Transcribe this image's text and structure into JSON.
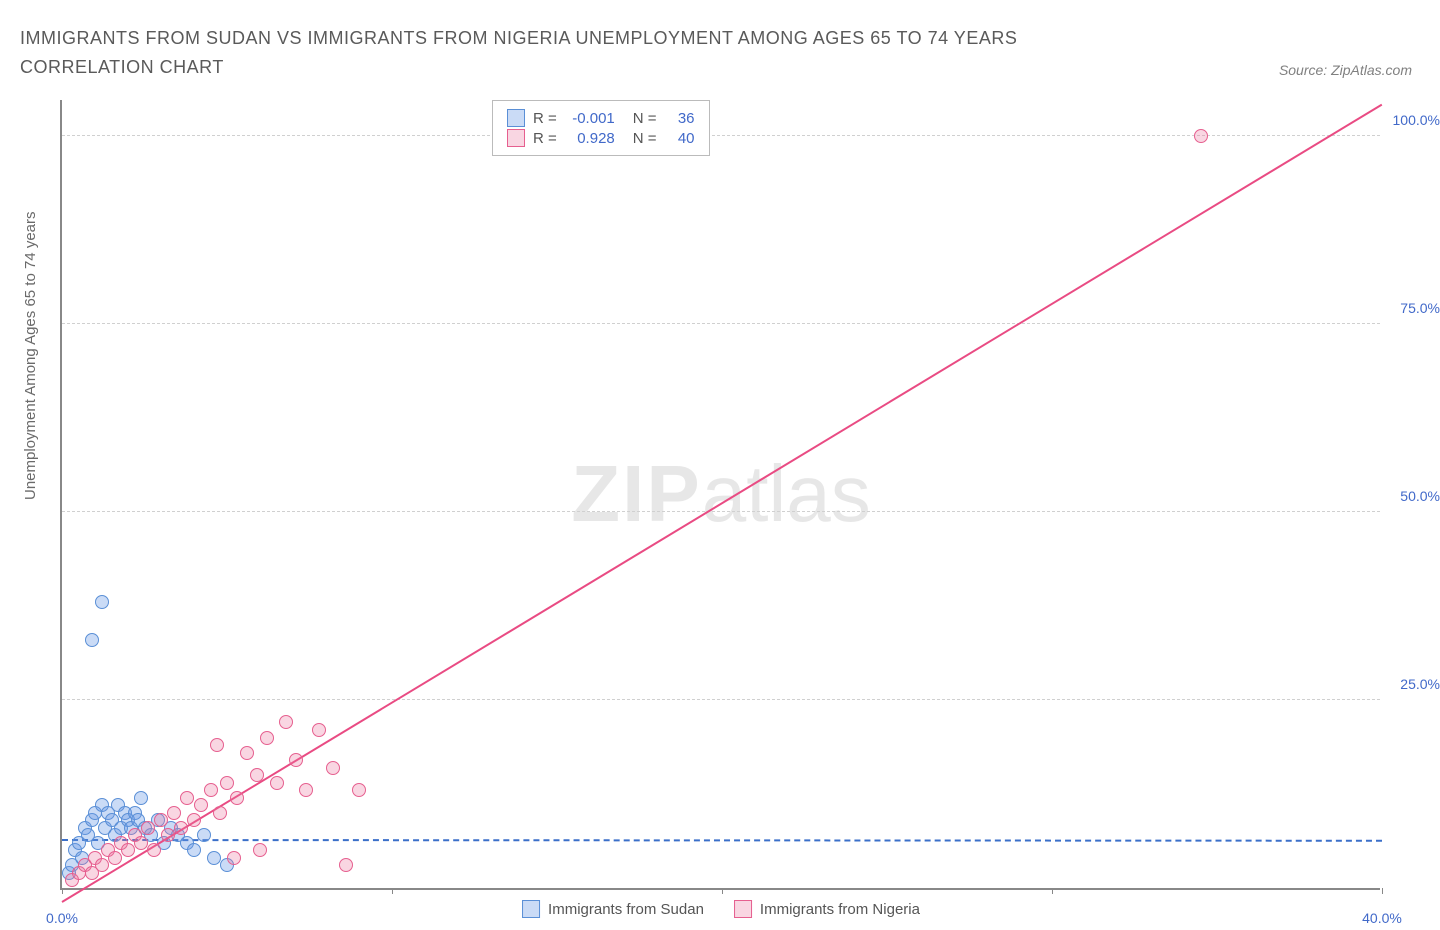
{
  "title": "IMMIGRANTS FROM SUDAN VS IMMIGRANTS FROM NIGERIA UNEMPLOYMENT AMONG AGES 65 TO 74 YEARS CORRELATION CHART",
  "source": "Source: ZipAtlas.com",
  "ylabel": "Unemployment Among Ages 65 to 74 years",
  "watermark_zip": "ZIP",
  "watermark_atlas": "atlas",
  "chart": {
    "type": "scatter",
    "xlim": [
      0,
      40
    ],
    "ylim": [
      0,
      105
    ],
    "xticks": [
      {
        "pos": 0.0,
        "label": "0.0%"
      },
      {
        "pos": 10.0,
        "label": ""
      },
      {
        "pos": 20.0,
        "label": ""
      },
      {
        "pos": 30.0,
        "label": ""
      },
      {
        "pos": 40.0,
        "label": "40.0%"
      }
    ],
    "yticks": [
      {
        "pos": 25,
        "label": "25.0%"
      },
      {
        "pos": 50,
        "label": "50.0%"
      },
      {
        "pos": 75,
        "label": "75.0%"
      },
      {
        "pos": 100,
        "label": "100.0%"
      }
    ],
    "background_color": "#ffffff",
    "grid_color": "#d8d8d8",
    "axis_color": "#888888",
    "tick_label_color": "#4169c9",
    "series": [
      {
        "name": "Immigrants from Sudan",
        "color_fill": "rgba(102,153,230,0.35)",
        "color_stroke": "#5a8fd6",
        "marker_radius": 7,
        "R": "-0.001",
        "N": "36",
        "trend": {
          "x1": 0,
          "y1": 6.2,
          "x2": 40,
          "y2": 6.1,
          "color": "#3a6fc9",
          "width": 2,
          "dashed": true
        },
        "points": [
          {
            "x": 0.2,
            "y": 2
          },
          {
            "x": 0.3,
            "y": 3
          },
          {
            "x": 0.4,
            "y": 5
          },
          {
            "x": 0.5,
            "y": 6
          },
          {
            "x": 0.6,
            "y": 4
          },
          {
            "x": 0.7,
            "y": 8
          },
          {
            "x": 0.8,
            "y": 7
          },
          {
            "x": 0.9,
            "y": 9
          },
          {
            "x": 1.0,
            "y": 10
          },
          {
            "x": 1.1,
            "y": 6
          },
          {
            "x": 1.2,
            "y": 11
          },
          {
            "x": 1.3,
            "y": 8
          },
          {
            "x": 1.4,
            "y": 10
          },
          {
            "x": 1.5,
            "y": 9
          },
          {
            "x": 1.6,
            "y": 7
          },
          {
            "x": 1.7,
            "y": 11
          },
          {
            "x": 1.8,
            "y": 8
          },
          {
            "x": 1.9,
            "y": 10
          },
          {
            "x": 2.0,
            "y": 9
          },
          {
            "x": 2.1,
            "y": 8
          },
          {
            "x": 2.2,
            "y": 10
          },
          {
            "x": 2.3,
            "y": 9
          },
          {
            "x": 2.5,
            "y": 8
          },
          {
            "x": 2.7,
            "y": 7
          },
          {
            "x": 2.9,
            "y": 9
          },
          {
            "x": 3.1,
            "y": 6
          },
          {
            "x": 3.3,
            "y": 8
          },
          {
            "x": 3.5,
            "y": 7
          },
          {
            "x": 3.8,
            "y": 6
          },
          {
            "x": 4.0,
            "y": 5
          },
          {
            "x": 4.3,
            "y": 7
          },
          {
            "x": 4.6,
            "y": 4
          },
          {
            "x": 5.0,
            "y": 3
          },
          {
            "x": 0.9,
            "y": 33
          },
          {
            "x": 1.2,
            "y": 38
          },
          {
            "x": 2.4,
            "y": 12
          }
        ]
      },
      {
        "name": "Immigrants from Nigeria",
        "color_fill": "rgba(236,120,160,0.30)",
        "color_stroke": "#e65f8f",
        "marker_radius": 7,
        "R": "0.928",
        "N": "40",
        "trend": {
          "x1": 0,
          "y1": -2,
          "x2": 40,
          "y2": 104,
          "color": "#e94b83",
          "width": 2,
          "dashed": false
        },
        "points": [
          {
            "x": 0.3,
            "y": 1
          },
          {
            "x": 0.5,
            "y": 2
          },
          {
            "x": 0.7,
            "y": 3
          },
          {
            "x": 0.9,
            "y": 2
          },
          {
            "x": 1.0,
            "y": 4
          },
          {
            "x": 1.2,
            "y": 3
          },
          {
            "x": 1.4,
            "y": 5
          },
          {
            "x": 1.6,
            "y": 4
          },
          {
            "x": 1.8,
            "y": 6
          },
          {
            "x": 2.0,
            "y": 5
          },
          {
            "x": 2.2,
            "y": 7
          },
          {
            "x": 2.4,
            "y": 6
          },
          {
            "x": 2.6,
            "y": 8
          },
          {
            "x": 2.8,
            "y": 5
          },
          {
            "x": 3.0,
            "y": 9
          },
          {
            "x": 3.2,
            "y": 7
          },
          {
            "x": 3.4,
            "y": 10
          },
          {
            "x": 3.6,
            "y": 8
          },
          {
            "x": 3.8,
            "y": 12
          },
          {
            "x": 4.0,
            "y": 9
          },
          {
            "x": 4.2,
            "y": 11
          },
          {
            "x": 4.5,
            "y": 13
          },
          {
            "x": 4.8,
            "y": 10
          },
          {
            "x": 5.0,
            "y": 14
          },
          {
            "x": 5.3,
            "y": 12
          },
          {
            "x": 5.6,
            "y": 18
          },
          {
            "x": 5.9,
            "y": 15
          },
          {
            "x": 6.2,
            "y": 20
          },
          {
            "x": 6.5,
            "y": 14
          },
          {
            "x": 6.8,
            "y": 22
          },
          {
            "x": 7.1,
            "y": 17
          },
          {
            "x": 7.4,
            "y": 13
          },
          {
            "x": 7.8,
            "y": 21
          },
          {
            "x": 8.2,
            "y": 16
          },
          {
            "x": 8.6,
            "y": 3
          },
          {
            "x": 9.0,
            "y": 13
          },
          {
            "x": 5.2,
            "y": 4
          },
          {
            "x": 6.0,
            "y": 5
          },
          {
            "x": 4.7,
            "y": 19
          },
          {
            "x": 34.5,
            "y": 100
          }
        ]
      }
    ],
    "legend_top_labels": {
      "R": "R =",
      "N": "N ="
    }
  },
  "legend_bottom": [
    {
      "label": "Immigrants from Sudan",
      "fill": "rgba(102,153,230,0.35)",
      "stroke": "#5a8fd6"
    },
    {
      "label": "Immigrants from Nigeria",
      "fill": "rgba(236,120,160,0.30)",
      "stroke": "#e65f8f"
    }
  ]
}
